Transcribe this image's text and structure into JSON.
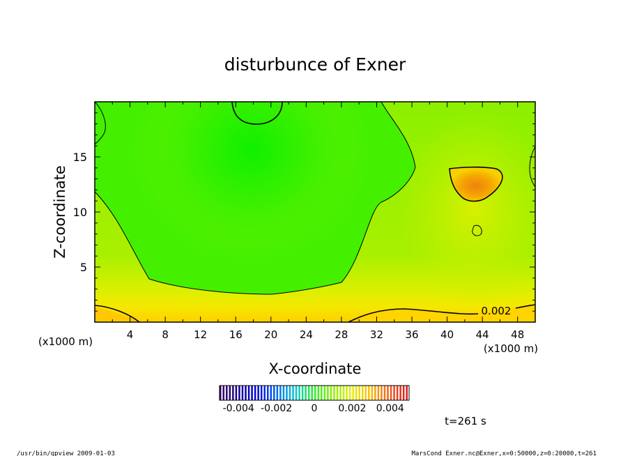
{
  "chart_data": {
    "type": "heatmap",
    "title": "disturbunce of Exner",
    "xlabel": "X-coordinate",
    "ylabel": "Z-coordinate",
    "x_unit": "(x1000 m)",
    "y_unit": "(x1000 m)",
    "xlim": [
      0,
      50
    ],
    "ylim": [
      0,
      20
    ],
    "xticks": [
      "4",
      "8",
      "12",
      "16",
      "20",
      "24",
      "28",
      "32",
      "36",
      "40",
      "44",
      "48"
    ],
    "yticks": [
      "5",
      "10",
      "15"
    ],
    "contour_label": "0.002",
    "colorbar": {
      "range": [
        -0.005,
        0.005
      ],
      "ticks": [
        "-0.004",
        "-0.002",
        "0",
        "0.002",
        "0.004"
      ],
      "tick_values": [
        -0.004,
        -0.002,
        0,
        0.002,
        0.004
      ]
    },
    "time_label": "t=261 s",
    "footer_left": "/usr/bin/gpview   2009-01-03",
    "footer_right": "MarsCond_Exner.nc@Exner,x=0:50000,z=0:20000,t=261"
  }
}
